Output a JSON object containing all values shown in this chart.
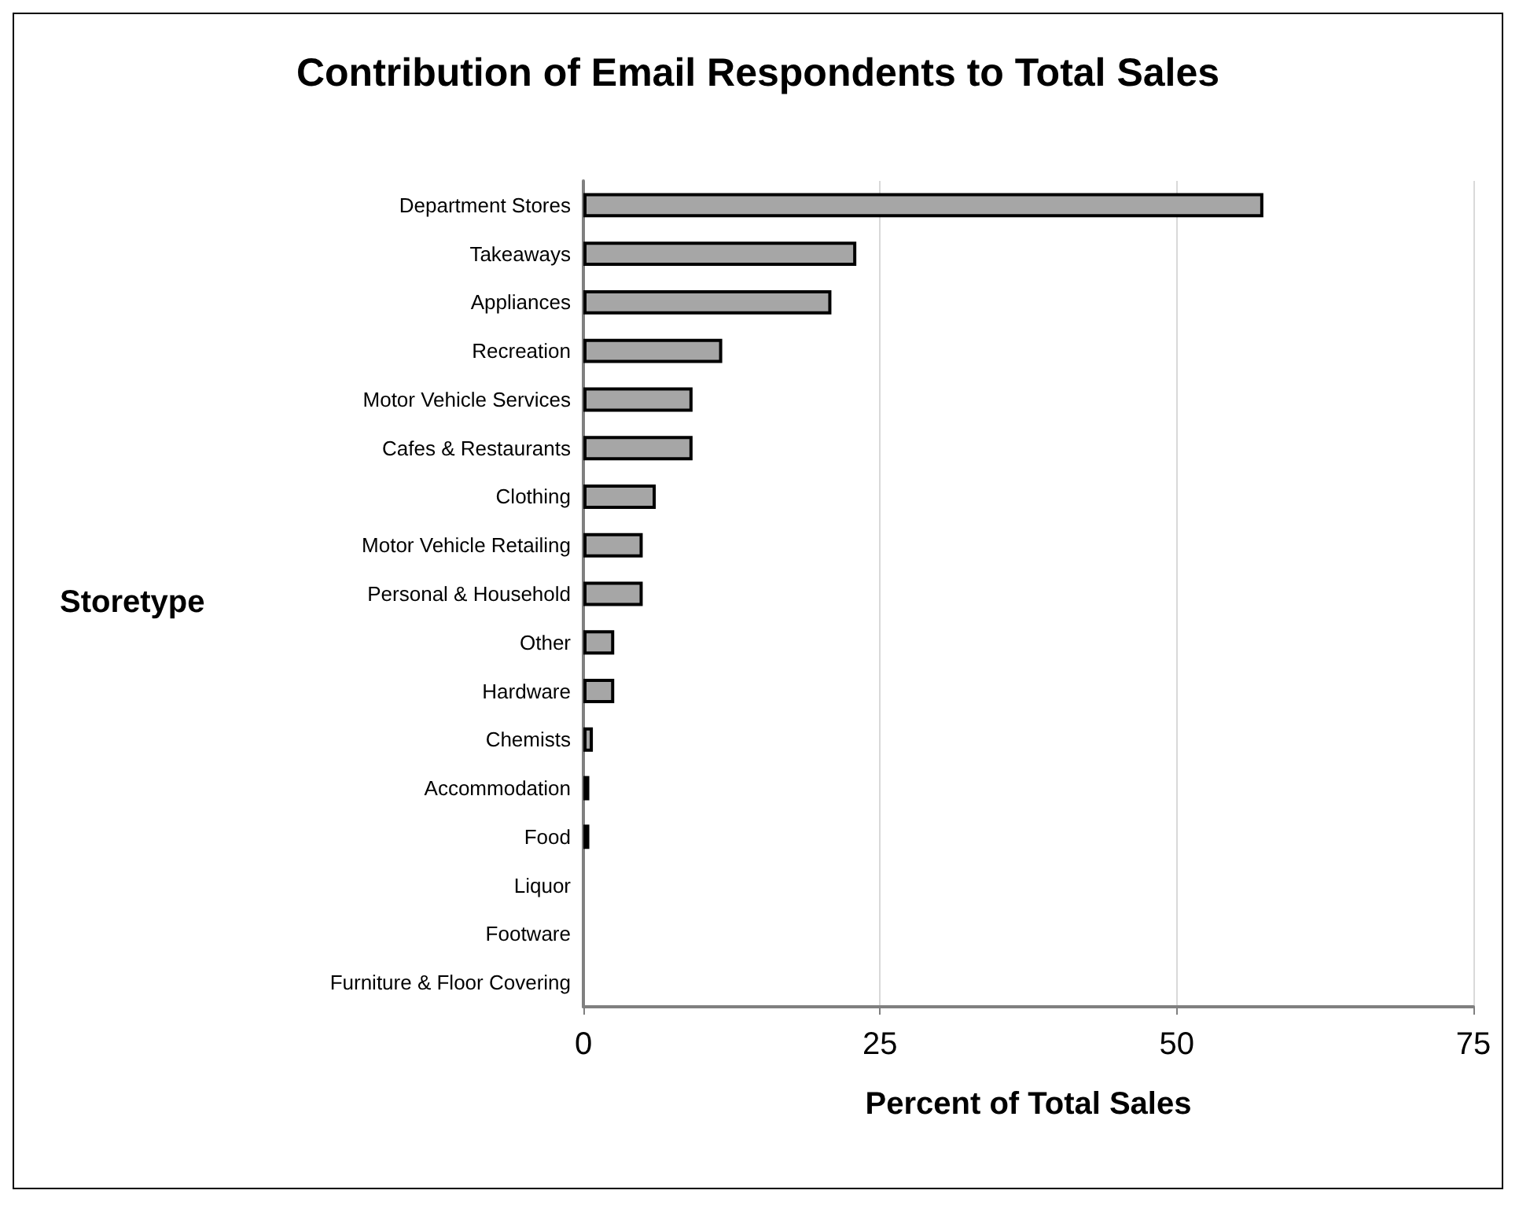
{
  "chart_data": {
    "type": "bar",
    "orientation": "horizontal",
    "title": "Contribution of Email Respondents to Total Sales",
    "xlabel": "Percent of Total Sales",
    "ylabel": "Storetype",
    "categories": [
      "Department Stores",
      "Takeaways",
      "Appliances",
      "Recreation",
      "Motor Vehicle Services",
      "Cafes & Restaurants",
      "Clothing",
      "Motor Vehicle Retailing",
      "Personal & Household",
      "Other",
      "Hardware",
      "Chemists",
      "Accommodation",
      "Food",
      "Liquor",
      "Footware",
      "Furniture & Floor Covering"
    ],
    "values": [
      57.3,
      23.0,
      20.9,
      11.7,
      9.2,
      9.2,
      6.1,
      5.0,
      5.0,
      2.6,
      2.6,
      0.8,
      0.5,
      0.5,
      0,
      0,
      0
    ],
    "color": "#a6a6a6",
    "xlim": [
      0,
      75
    ],
    "xticks": [
      0,
      25,
      50,
      75
    ],
    "grid": "x"
  }
}
